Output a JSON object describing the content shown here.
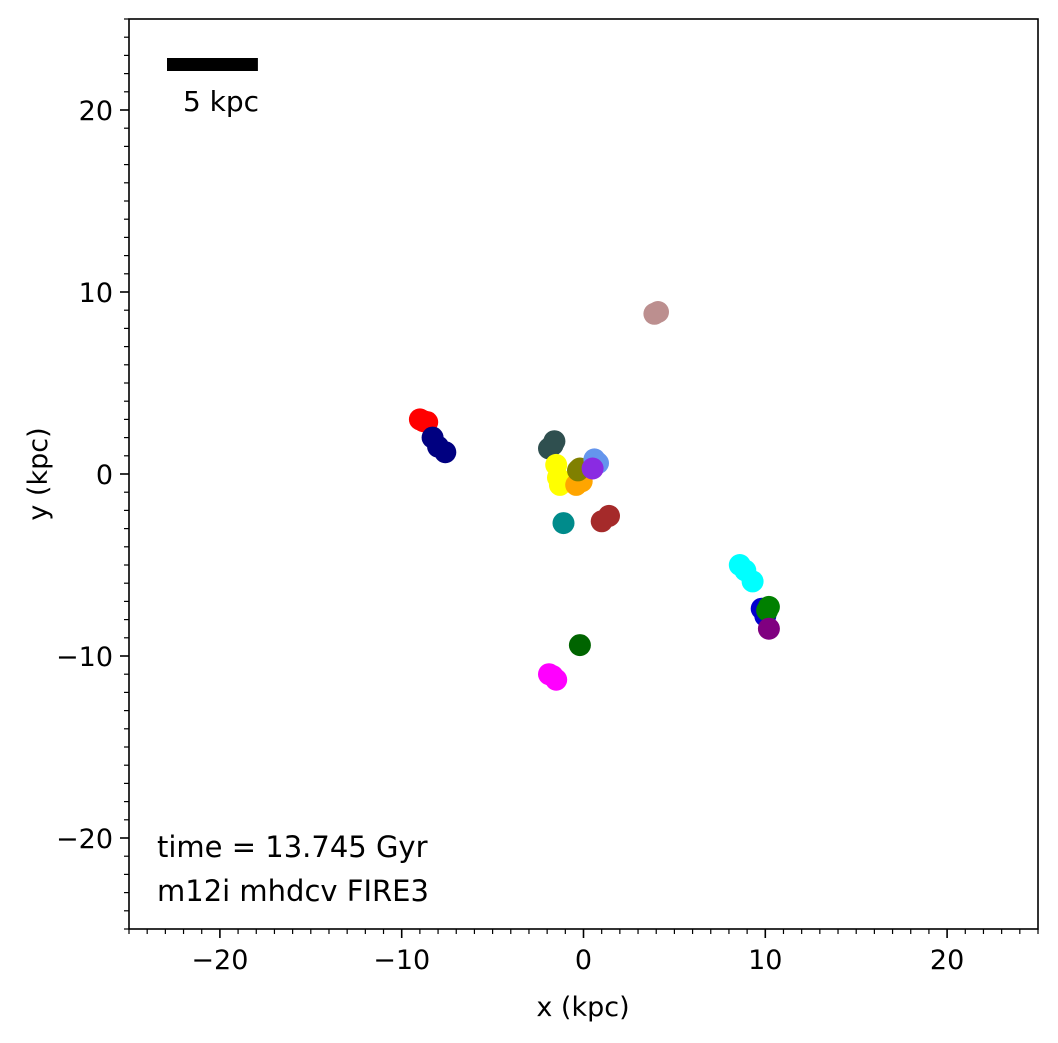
{
  "chart_data": {
    "type": "scatter",
    "xlabel": "x (kpc)",
    "ylabel": "y (kpc)",
    "xlim": [
      -25,
      25
    ],
    "ylim": [
      -25,
      25
    ],
    "xticks": [
      -20,
      -10,
      0,
      10,
      20
    ],
    "yticks": [
      -20,
      -10,
      0,
      10,
      20
    ],
    "xtick_labels": [
      "−20",
      "−10",
      "0",
      "10",
      "20"
    ],
    "ytick_labels": [
      "−20",
      "−10",
      "0",
      "10",
      "20"
    ],
    "minor_tick_step": 1,
    "grid": false,
    "background": "grayscale gas density map (spiral galaxy)",
    "scale_bar": {
      "label": "5 kpc",
      "length_kpc": 5
    },
    "annotations": [
      "time = 13.745 Gyr",
      "m12i mhdcv FIRE3"
    ],
    "series": [
      {
        "color": "#ff0000",
        "x": [
          -9.0,
          -8.8,
          -8.6
        ],
        "y": [
          3.0,
          2.9,
          2.85
        ]
      },
      {
        "color": "#000080",
        "x": [
          -8.3,
          -8.0,
          -7.6
        ],
        "y": [
          2.0,
          1.5,
          1.2
        ]
      },
      {
        "color": "#bc8f8f",
        "x": [
          3.9,
          4.1
        ],
        "y": [
          8.8,
          8.9
        ]
      },
      {
        "color": "#2f4f4f",
        "x": [
          -1.9,
          -1.7,
          -1.6
        ],
        "y": [
          1.4,
          1.6,
          1.8
        ]
      },
      {
        "color": "#ffff00",
        "x": [
          -1.5,
          -1.4,
          -1.3
        ],
        "y": [
          0.5,
          -0.2,
          -0.6
        ]
      },
      {
        "color": "#ffa500",
        "x": [
          -0.4,
          -0.1
        ],
        "y": [
          -0.6,
          -0.4
        ]
      },
      {
        "color": "#808000",
        "x": [
          -0.3,
          -0.2
        ],
        "y": [
          0.2,
          0.3
        ]
      },
      {
        "color": "#6495ed",
        "x": [
          0.6,
          0.8
        ],
        "y": [
          0.8,
          0.6
        ]
      },
      {
        "color": "#8a2be2",
        "x": [
          0.5
        ],
        "y": [
          0.3
        ]
      },
      {
        "color": "#a52a2a",
        "x": [
          1.0,
          1.4
        ],
        "y": [
          -2.6,
          -2.3
        ]
      },
      {
        "color": "#008b8b",
        "x": [
          -1.1
        ],
        "y": [
          -2.7
        ]
      },
      {
        "color": "#00ffff",
        "x": [
          8.6,
          8.9,
          9.3
        ],
        "y": [
          -5.0,
          -5.3,
          -5.9
        ]
      },
      {
        "color": "#0000cd",
        "x": [
          9.8,
          10.0
        ],
        "y": [
          -7.4,
          -7.8
        ]
      },
      {
        "color": "#008000",
        "x": [
          10.1,
          10.2
        ],
        "y": [
          -7.5,
          -7.3
        ]
      },
      {
        "color": "#800080",
        "x": [
          10.2
        ],
        "y": [
          -8.5
        ]
      },
      {
        "color": "#006400",
        "x": [
          -0.2
        ],
        "y": [
          -9.4
        ]
      },
      {
        "color": "#ff00ff",
        "x": [
          -1.9,
          -1.7,
          -1.5
        ],
        "y": [
          -11.0,
          -11.1,
          -11.3
        ]
      }
    ]
  }
}
